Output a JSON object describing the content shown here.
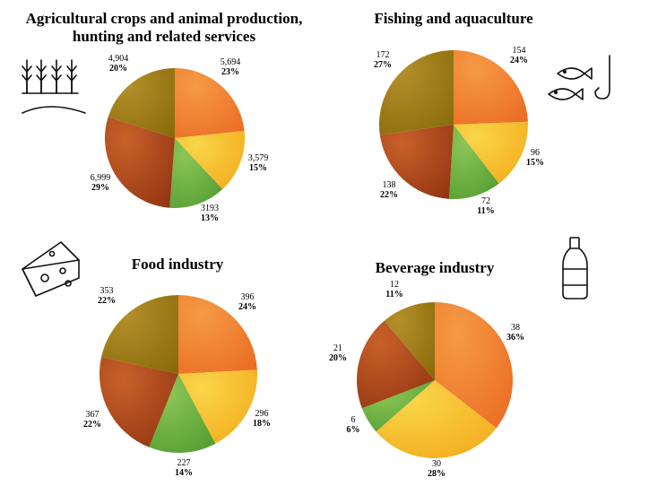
{
  "colors": {
    "orange": "#f0802e",
    "yellow": "#f6bf1d",
    "green": "#6ab23f",
    "rust": "#b5471c",
    "olive": "#a27d11"
  },
  "icons": [
    "wheat-icon",
    "fish-hook-icon",
    "cheese-icon",
    "bottle-icon"
  ],
  "chart_data": [
    {
      "type": "pie",
      "title_lines": [
        "Agricultural crops and animal production,",
        "hunting and related services"
      ],
      "labels": [
        "5,694",
        "3,579",
        "3193",
        "6,999",
        "4,904"
      ],
      "values": [
        5694,
        3579,
        3193,
        6999,
        4904
      ],
      "percents": [
        "23%",
        "15%",
        "13%",
        "29%",
        "20%"
      ]
    },
    {
      "type": "pie",
      "title_lines": [
        "Fishing and aquaculture"
      ],
      "labels": [
        "154",
        "96",
        "72",
        "138",
        "172"
      ],
      "values": [
        154,
        96,
        72,
        138,
        172
      ],
      "percents": [
        "24%",
        "15%",
        "11%",
        "22%",
        "27%"
      ]
    },
    {
      "type": "pie",
      "title_lines": [
        "Food industry"
      ],
      "labels": [
        "396",
        "296",
        "227",
        "367",
        "353"
      ],
      "values": [
        396,
        296,
        227,
        367,
        353
      ],
      "percents": [
        "24%",
        "18%",
        "14%",
        "22%",
        "22%"
      ]
    },
    {
      "type": "pie",
      "title_lines": [
        "Beverage industry"
      ],
      "labels": [
        "38",
        "30",
        "6",
        "21",
        "12"
      ],
      "values": [
        38,
        30,
        6,
        21,
        12
      ],
      "percents": [
        "36%",
        "28%",
        "6%",
        "20%",
        "11%"
      ]
    }
  ]
}
